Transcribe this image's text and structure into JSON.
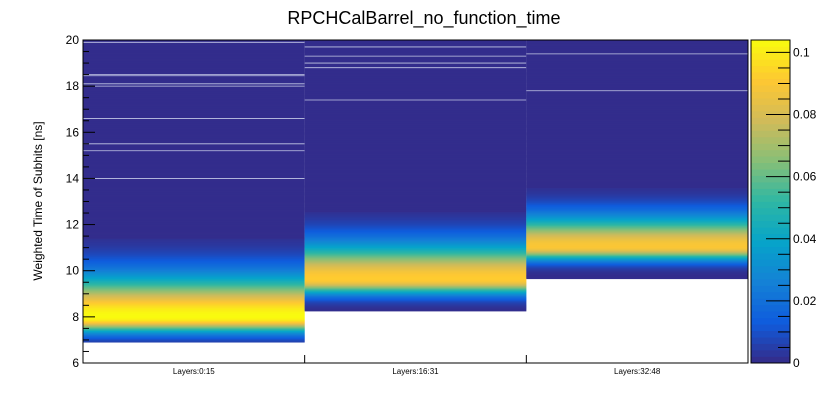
{
  "chart_data": {
    "type": "heatmap",
    "title": "RPCHCalBarrel_no_function_time",
    "xlabel": "",
    "ylabel": "Weighted Time of Subhits [ns]",
    "categories": [
      "Layers:0:15",
      "Layers:16:31",
      "Layers:32:48"
    ],
    "ylim": [
      6,
      20
    ],
    "yticks": [
      "6",
      "8",
      "10",
      "12",
      "14",
      "16",
      "18",
      "20"
    ],
    "colorbar": {
      "range": [
        0,
        0.104
      ],
      "ticks": [
        "0",
        "0.02",
        "0.04",
        "0.06",
        "0.08",
        "0.1"
      ],
      "palette": [
        "#352a87",
        "#0f5cdd",
        "#1481d6",
        "#06a4ca",
        "#2eb7a4",
        "#87bf77",
        "#d1bb59",
        "#fec832",
        "#f9fb0e"
      ]
    },
    "series": [
      {
        "category": "Layers:0:15",
        "y_min": 6.9,
        "y_max": 20,
        "peak_y": 8.0,
        "peak_value": 0.104,
        "spread_low": 0.45,
        "spread_high": 1.2,
        "dense_top": 11.4,
        "outlier_lines": [
          19.9,
          18.5,
          18.45,
          18.1,
          18.0,
          16.6,
          15.5,
          15.2,
          14.0
        ]
      },
      {
        "category": "Layers:16:31",
        "y_min": 8.25,
        "y_max": 20,
        "peak_y": 9.65,
        "peak_value": 0.092,
        "spread_low": 0.45,
        "spread_high": 1.05,
        "dense_top": 12.55,
        "outlier_lines": [
          19.7,
          19.3,
          19.0,
          18.8,
          17.4
        ]
      },
      {
        "category": "Layers:32:48",
        "y_min": 9.65,
        "y_max": 20,
        "peak_y": 11.05,
        "peak_value": 0.09,
        "spread_low": 0.4,
        "spread_high": 0.9,
        "dense_top": 13.6,
        "outlier_lines": [
          19.4,
          17.8
        ]
      }
    ]
  }
}
